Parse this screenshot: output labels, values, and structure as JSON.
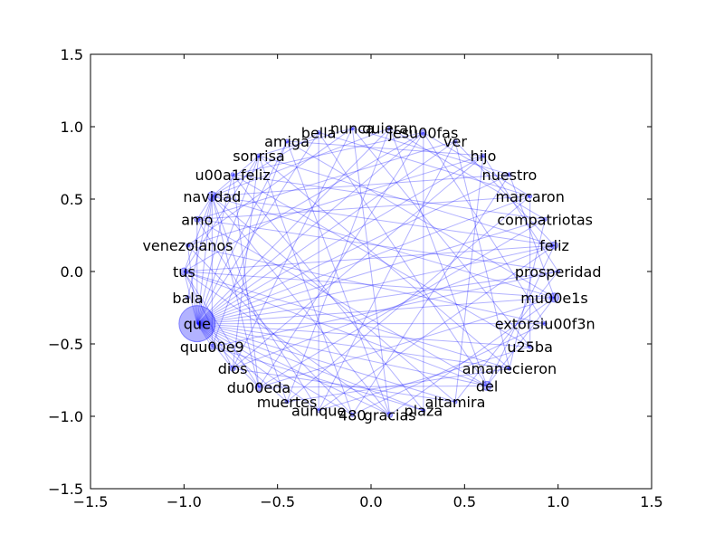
{
  "chart_data": {
    "type": "scatter",
    "title": "",
    "xlabel": "",
    "ylabel": "",
    "xlim": [
      -1.5,
      1.5
    ],
    "ylim": [
      -1.5,
      1.5
    ],
    "x_ticks": [
      "−1.5",
      "−1.0",
      "−0.5",
      "0.0",
      "0.5",
      "1.0",
      "1.5"
    ],
    "y_ticks": [
      "1.5",
      "1.0",
      "0.5",
      "0.0",
      "−0.5",
      "−1.0",
      "−1.5"
    ],
    "x_tick_values": [
      -1.5,
      -1.0,
      -0.5,
      0.0,
      0.5,
      1.0,
      1.5
    ],
    "y_tick_values": [
      1.5,
      1.0,
      0.5,
      0.0,
      -0.5,
      -1.0,
      -1.5
    ],
    "grid": false,
    "colors": {
      "edge": "#0000ff",
      "node": "#0000ff"
    },
    "nodes": [
      {
        "label": "nunca",
        "x": -0.1,
        "y": 0.99,
        "size": 2
      },
      {
        "label": "quieran",
        "x": 0.1,
        "y": 0.99,
        "size": 2
      },
      {
        "label": "jesu00fas",
        "x": 0.28,
        "y": 0.96,
        "size": 3
      },
      {
        "label": "ver",
        "x": 0.45,
        "y": 0.9,
        "size": 2
      },
      {
        "label": "hijo",
        "x": 0.6,
        "y": 0.8,
        "size": 2
      },
      {
        "label": "nuestro",
        "x": 0.74,
        "y": 0.67,
        "size": 2
      },
      {
        "label": "marcaron",
        "x": 0.85,
        "y": 0.52,
        "size": 2
      },
      {
        "label": "compatriotas",
        "x": 0.93,
        "y": 0.36,
        "size": 2
      },
      {
        "label": "feliz",
        "x": 0.98,
        "y": 0.18,
        "size": 4
      },
      {
        "label": "prosperidad",
        "x": 1.0,
        "y": 0.0,
        "size": 2
      },
      {
        "label": "mu00e1s",
        "x": 0.98,
        "y": -0.18,
        "size": 5
      },
      {
        "label": "extorsiu00f3n",
        "x": 0.93,
        "y": -0.36,
        "size": 2
      },
      {
        "label": "u25ba",
        "x": 0.85,
        "y": -0.52,
        "size": 2
      },
      {
        "label": "amanecieron",
        "x": 0.74,
        "y": -0.67,
        "size": 2
      },
      {
        "label": "del",
        "x": 0.62,
        "y": -0.79,
        "size": 5
      },
      {
        "label": "altamira",
        "x": 0.45,
        "y": -0.9,
        "size": 2
      },
      {
        "label": "plaza",
        "x": 0.28,
        "y": -0.96,
        "size": 2
      },
      {
        "label": "gracias",
        "x": 0.1,
        "y": -0.99,
        "size": 3
      },
      {
        "label": "480",
        "x": -0.1,
        "y": -0.99,
        "size": 2
      },
      {
        "label": "aunque",
        "x": -0.28,
        "y": -0.96,
        "size": 2
      },
      {
        "label": "muertes",
        "x": -0.45,
        "y": -0.9,
        "size": 2
      },
      {
        "label": "du00eda",
        "x": -0.6,
        "y": -0.8,
        "size": 4
      },
      {
        "label": "dios",
        "x": -0.74,
        "y": -0.67,
        "size": 3
      },
      {
        "label": "quu00e9",
        "x": -0.85,
        "y": -0.52,
        "size": 3
      },
      {
        "label": "que",
        "x": -0.93,
        "y": -0.36,
        "size": 20
      },
      {
        "label": "bala",
        "x": -0.98,
        "y": -0.18,
        "size": 2
      },
      {
        "label": "tus",
        "x": -1.0,
        "y": 0.0,
        "size": 4
      },
      {
        "label": "venezolanos",
        "x": -0.98,
        "y": 0.18,
        "size": 2
      },
      {
        "label": "amo",
        "x": -0.93,
        "y": 0.36,
        "size": 3
      },
      {
        "label": "navidad",
        "x": -0.85,
        "y": 0.52,
        "size": 5
      },
      {
        "label": "u00a1feliz",
        "x": -0.74,
        "y": 0.67,
        "size": 2
      },
      {
        "label": "sonrisa",
        "x": -0.6,
        "y": 0.8,
        "size": 2
      },
      {
        "label": "amiga",
        "x": -0.45,
        "y": 0.9,
        "size": 2
      },
      {
        "label": "bella",
        "x": -0.28,
        "y": 0.96,
        "size": 2
      }
    ],
    "edges": [
      [
        0,
        5
      ],
      [
        0,
        12
      ],
      [
        0,
        17
      ],
      [
        0,
        22
      ],
      [
        0,
        27
      ],
      [
        0,
        31
      ],
      [
        1,
        7
      ],
      [
        1,
        14
      ],
      [
        1,
        20
      ],
      [
        1,
        24
      ],
      [
        1,
        29
      ],
      [
        2,
        6
      ],
      [
        2,
        11
      ],
      [
        2,
        16
      ],
      [
        2,
        21
      ],
      [
        2,
        24
      ],
      [
        2,
        26
      ],
      [
        2,
        30
      ],
      [
        3,
        8
      ],
      [
        3,
        13
      ],
      [
        3,
        19
      ],
      [
        3,
        24
      ],
      [
        3,
        28
      ],
      [
        4,
        9
      ],
      [
        4,
        15
      ],
      [
        4,
        22
      ],
      [
        4,
        24
      ],
      [
        4,
        27
      ],
      [
        4,
        32
      ],
      [
        5,
        10
      ],
      [
        5,
        18
      ],
      [
        5,
        24
      ],
      [
        5,
        29
      ],
      [
        6,
        12
      ],
      [
        6,
        20
      ],
      [
        6,
        24
      ],
      [
        6,
        28
      ],
      [
        6,
        33
      ],
      [
        7,
        13
      ],
      [
        7,
        21
      ],
      [
        7,
        24
      ],
      [
        7,
        30
      ],
      [
        8,
        14
      ],
      [
        8,
        19
      ],
      [
        8,
        24
      ],
      [
        8,
        26
      ],
      [
        8,
        29
      ],
      [
        8,
        31
      ],
      [
        8,
        22
      ],
      [
        9,
        15
      ],
      [
        9,
        23
      ],
      [
        9,
        24
      ],
      [
        9,
        28
      ],
      [
        10,
        17
      ],
      [
        10,
        21
      ],
      [
        10,
        24
      ],
      [
        10,
        26
      ],
      [
        10,
        29
      ],
      [
        10,
        32
      ],
      [
        10,
        14
      ],
      [
        11,
        18
      ],
      [
        11,
        24
      ],
      [
        11,
        27
      ],
      [
        12,
        19
      ],
      [
        12,
        24
      ],
      [
        12,
        30
      ],
      [
        13,
        20
      ],
      [
        13,
        24
      ],
      [
        13,
        26
      ],
      [
        13,
        31
      ],
      [
        14,
        21
      ],
      [
        14,
        24
      ],
      [
        14,
        28
      ],
      [
        14,
        33
      ],
      [
        14,
        26
      ],
      [
        15,
        22
      ],
      [
        15,
        24
      ],
      [
        15,
        29
      ],
      [
        16,
        23
      ],
      [
        16,
        24
      ],
      [
        16,
        30
      ],
      [
        17,
        24
      ],
      [
        17,
        26
      ],
      [
        17,
        29
      ],
      [
        17,
        32
      ],
      [
        18,
        24
      ],
      [
        18,
        27
      ],
      [
        18,
        31
      ],
      [
        19,
        24
      ],
      [
        19,
        28
      ],
      [
        19,
        33
      ],
      [
        20,
        24
      ],
      [
        20,
        29
      ],
      [
        21,
        24
      ],
      [
        21,
        26
      ],
      [
        21,
        30
      ],
      [
        21,
        29
      ],
      [
        22,
        24
      ],
      [
        22,
        26
      ],
      [
        22,
        31
      ],
      [
        23,
        24
      ],
      [
        23,
        29
      ],
      [
        23,
        32
      ],
      [
        24,
        26
      ],
      [
        24,
        27
      ],
      [
        24,
        28
      ],
      [
        24,
        29
      ],
      [
        24,
        30
      ],
      [
        24,
        31
      ],
      [
        24,
        32
      ],
      [
        24,
        33
      ],
      [
        25,
        29
      ],
      [
        26,
        29
      ],
      [
        26,
        31
      ],
      [
        28,
        29
      ],
      [
        29,
        31
      ],
      [
        29,
        33
      ]
    ]
  }
}
